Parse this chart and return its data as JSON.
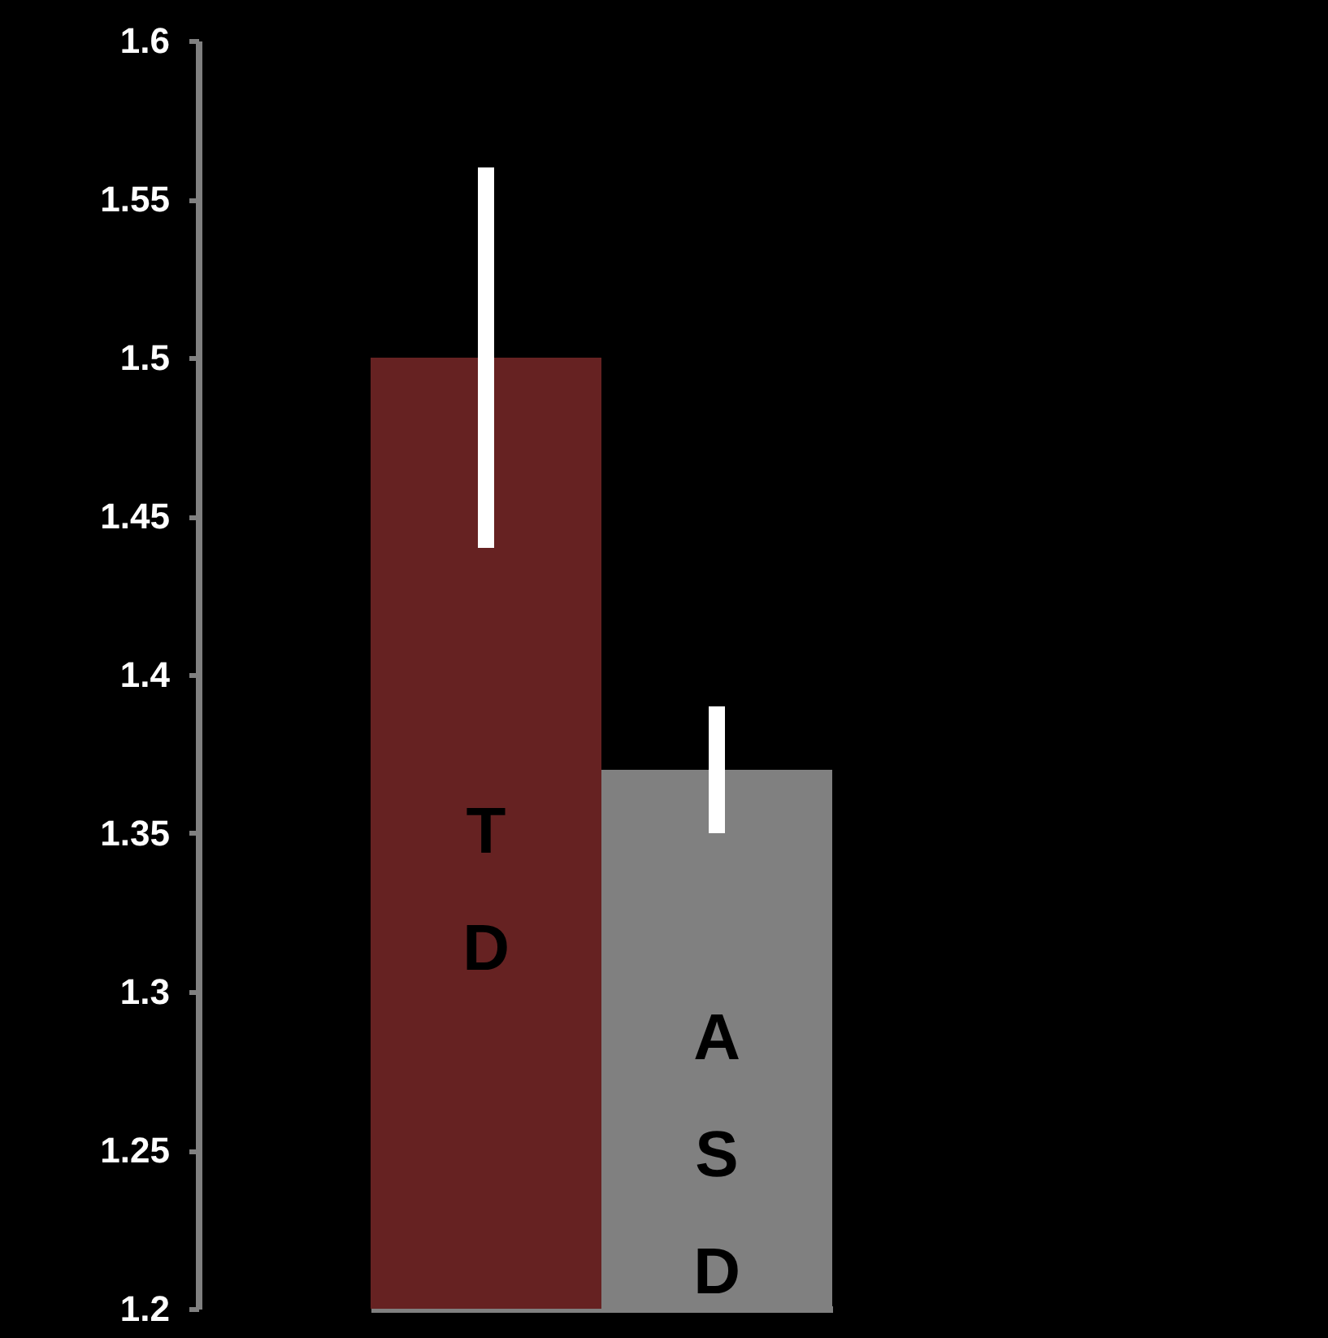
{
  "chart_data": {
    "type": "bar",
    "categories": [
      "TD",
      "ASD"
    ],
    "values": [
      1.5,
      1.37
    ],
    "colors": [
      "#662222",
      "#808080"
    ],
    "errors": [
      0.06,
      0.02
    ],
    "ylim": [
      1.2,
      1.6
    ],
    "yticks": [
      1.2,
      1.25,
      1.3,
      1.35,
      1.4,
      1.45,
      1.5,
      1.55,
      1.6
    ],
    "tick_labels": "y",
    "grid": false
  }
}
